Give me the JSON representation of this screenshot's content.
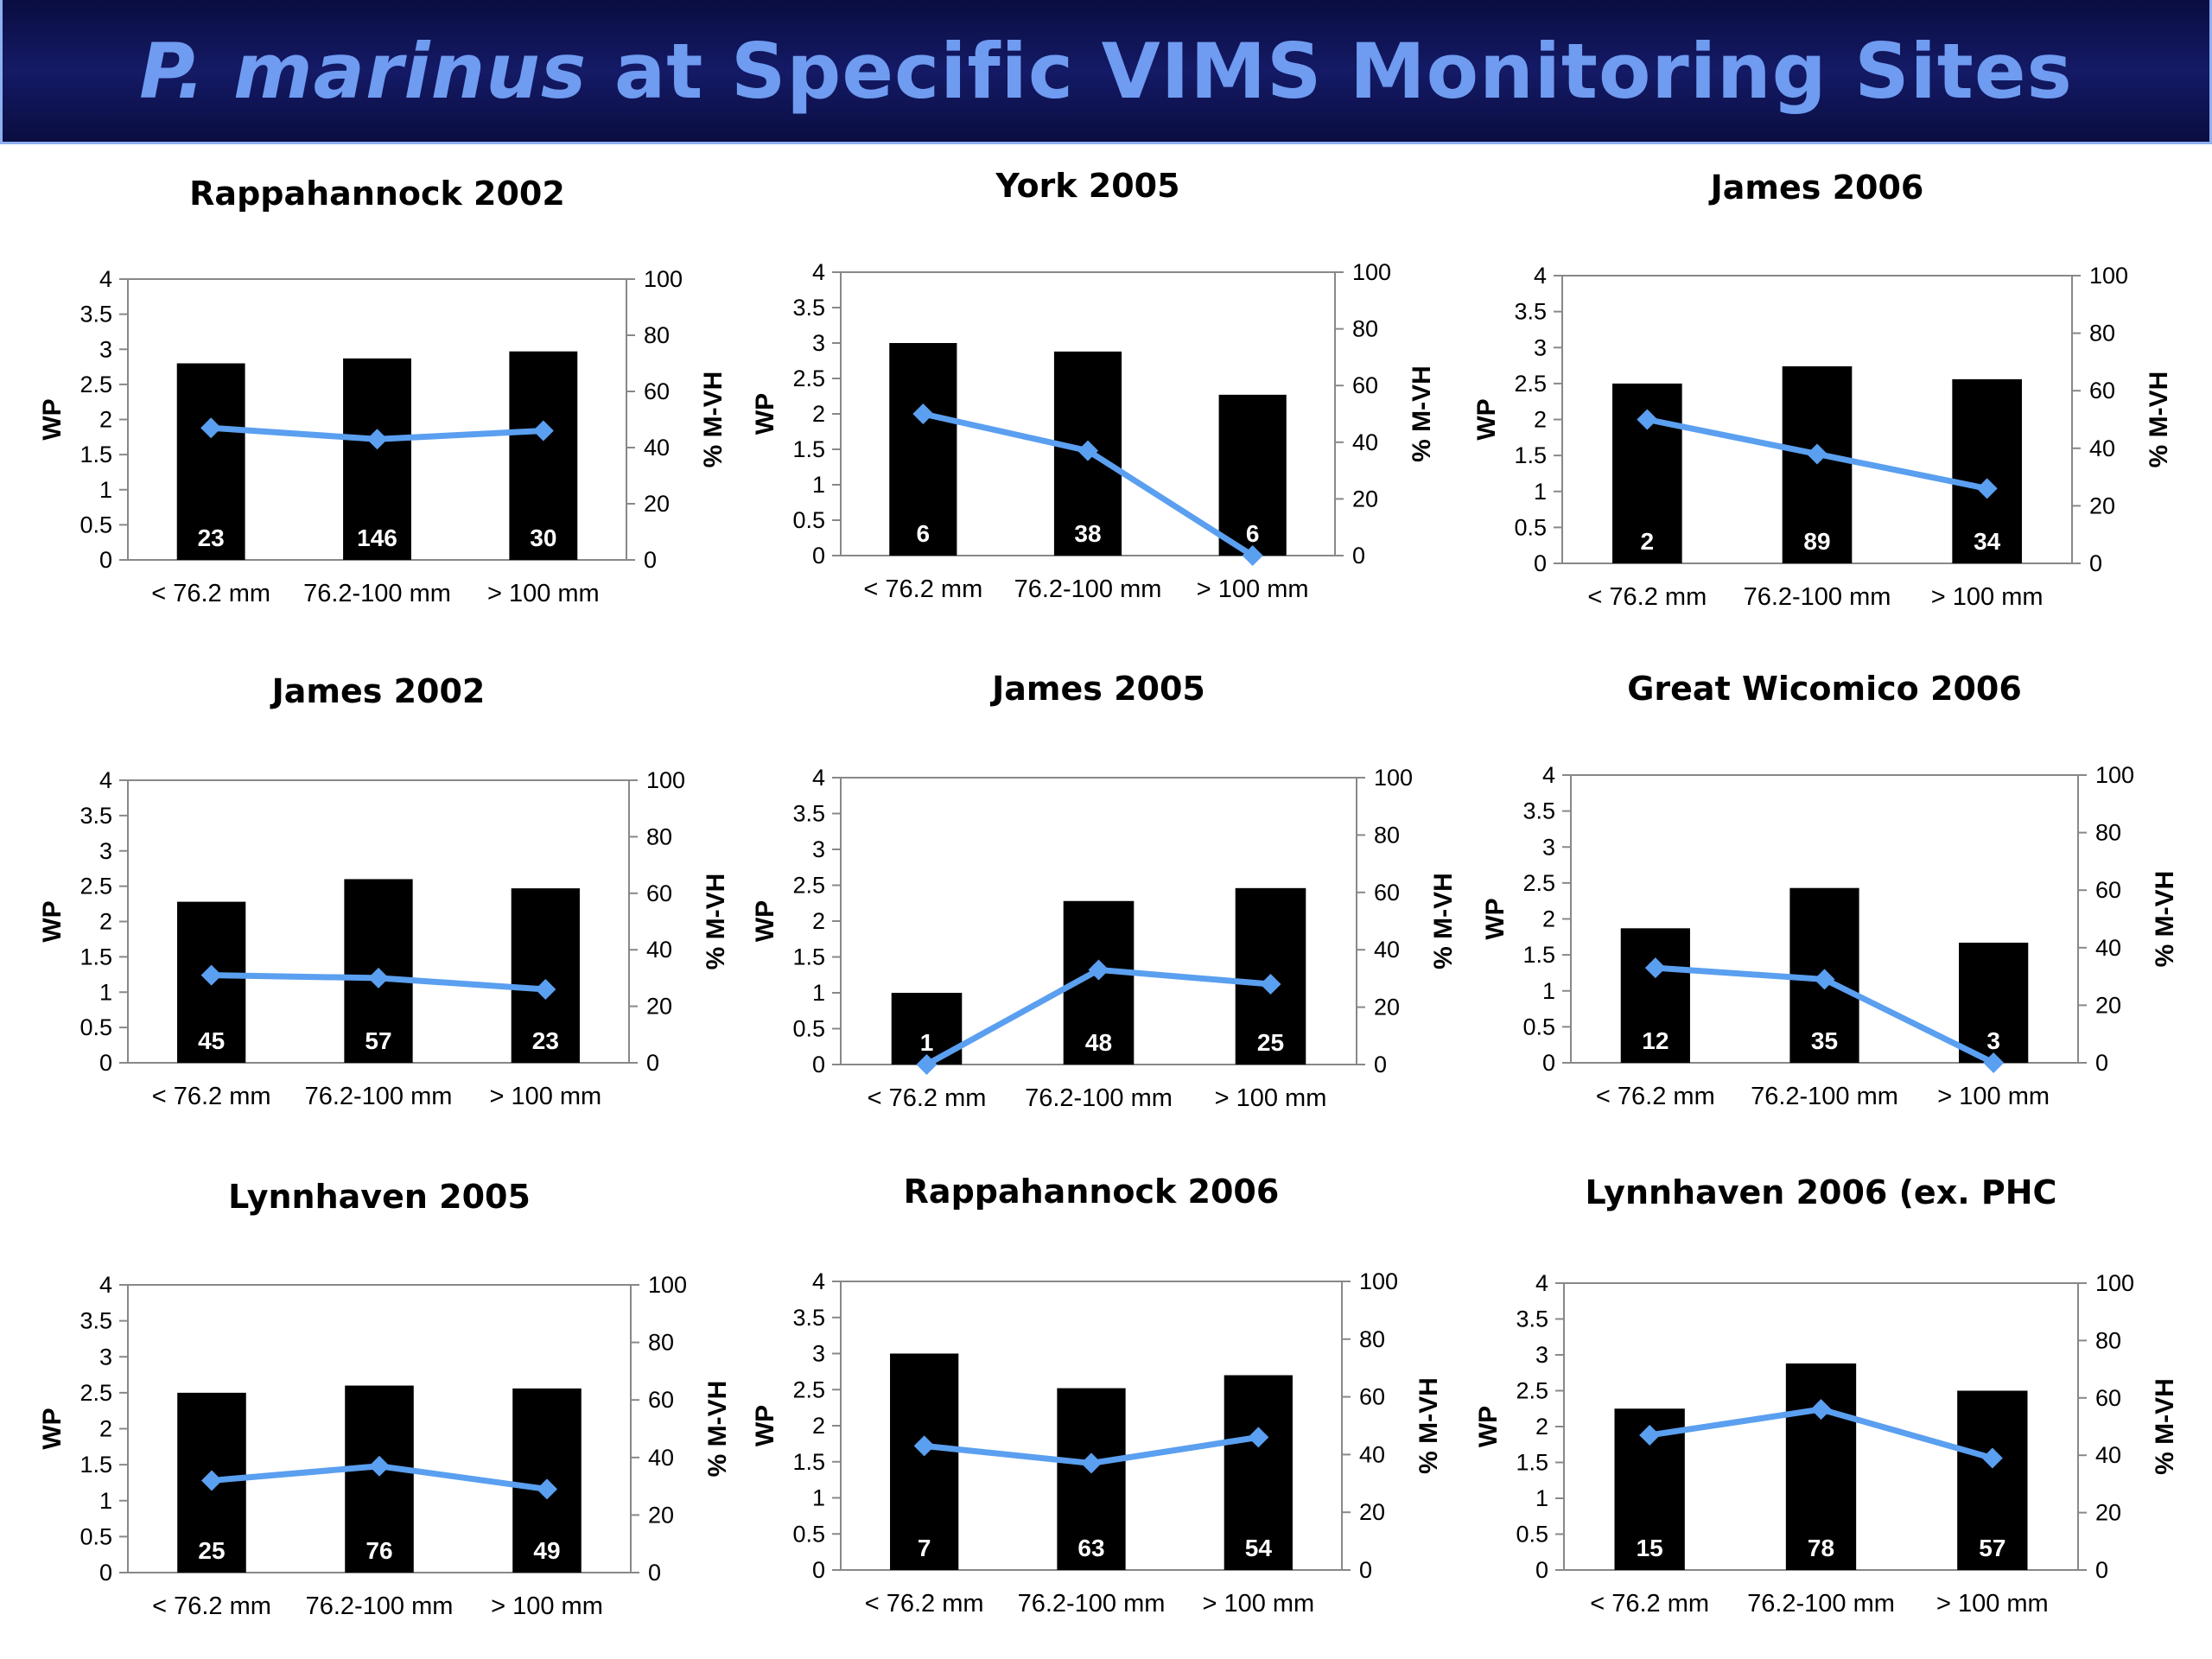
{
  "header": {
    "title_italic": "P. marinus",
    "title_rest": " at Specific VIMS Monitoring Sites"
  },
  "chart_data": [
    {
      "type": "bar",
      "title": "Rappahannock 2002",
      "categories": [
        "< 76.2 mm",
        "76.2-100 mm",
        "> 100 mm"
      ],
      "values": [
        2.8,
        2.87,
        2.97
      ],
      "bar_labels": [
        "23",
        "146",
        "30"
      ],
      "line": {
        "values": [
          47,
          43,
          46
        ],
        "color": "#5a9ff0"
      },
      "ylabel": "WP",
      "y2label": "% M-VH",
      "ylim": [
        0,
        4
      ],
      "yticks": [
        "0",
        "0.5",
        "1",
        "1.5",
        "2",
        "2.5",
        "3",
        "3.5",
        "4"
      ],
      "y2lim": [
        0,
        100
      ],
      "y2ticks": [
        "0",
        "20",
        "40",
        "60",
        "80",
        "100"
      ],
      "bar_color": "#000000"
    },
    {
      "type": "bar",
      "title": "York 2005",
      "categories": [
        "< 76.2 mm",
        "76.2-100 mm",
        "> 100 mm"
      ],
      "values": [
        3.0,
        2.88,
        2.27
      ],
      "bar_labels": [
        "6",
        "38",
        "6"
      ],
      "line": {
        "values": [
          50,
          37,
          0
        ],
        "color": "#5a9ff0"
      },
      "ylabel": "WP",
      "y2label": "% M-VH",
      "ylim": [
        0,
        4
      ],
      "yticks": [
        "0",
        "0.5",
        "1",
        "1.5",
        "2",
        "2.5",
        "3",
        "3.5",
        "4"
      ],
      "y2lim": [
        0,
        100
      ],
      "y2ticks": [
        "0",
        "20",
        "40",
        "60",
        "80",
        "100"
      ],
      "bar_color": "#000000"
    },
    {
      "type": "bar",
      "title": "James 2006",
      "categories": [
        "< 76.2 mm",
        "76.2-100 mm",
        "> 100 mm"
      ],
      "values": [
        2.5,
        2.74,
        2.56
      ],
      "bar_labels": [
        "2",
        "89",
        "34"
      ],
      "line": {
        "values": [
          50,
          38,
          26
        ],
        "color": "#5a9ff0"
      },
      "ylabel": "WP",
      "y2label": "% M-VH",
      "ylim": [
        0,
        4
      ],
      "yticks": [
        "0",
        "0.5",
        "1",
        "1.5",
        "2",
        "2.5",
        "3",
        "3.5",
        "4"
      ],
      "y2lim": [
        0,
        100
      ],
      "y2ticks": [
        "0",
        "20",
        "40",
        "60",
        "80",
        "100"
      ],
      "bar_color": "#000000"
    },
    {
      "type": "bar",
      "title": "James 2002",
      "categories": [
        "< 76.2 mm",
        "76.2-100 mm",
        "> 100 mm"
      ],
      "values": [
        2.28,
        2.6,
        2.47
      ],
      "bar_labels": [
        "45",
        "57",
        "23"
      ],
      "line": {
        "values": [
          31,
          30,
          26
        ],
        "color": "#5a9ff0"
      },
      "ylabel": "WP",
      "y2label": "% M-VH",
      "ylim": [
        0,
        4
      ],
      "yticks": [
        "0",
        "0.5",
        "1",
        "1.5",
        "2",
        "2.5",
        "3",
        "3.5",
        "4"
      ],
      "y2lim": [
        0,
        100
      ],
      "y2ticks": [
        "0",
        "20",
        "40",
        "60",
        "80",
        "100"
      ],
      "bar_color": "#000000"
    },
    {
      "type": "bar",
      "title": "James 2005",
      "categories": [
        "< 76.2 mm",
        "76.2-100 mm",
        "> 100 mm"
      ],
      "values": [
        1.0,
        2.28,
        2.46
      ],
      "bar_labels": [
        "1",
        "48",
        "25"
      ],
      "line": {
        "values": [
          0,
          33,
          28
        ],
        "color": "#5a9ff0"
      },
      "ylabel": "WP",
      "y2label": "% M-VH",
      "ylim": [
        0,
        4
      ],
      "yticks": [
        "0",
        "0.5",
        "1",
        "1.5",
        "2",
        "2.5",
        "3",
        "3.5",
        "4"
      ],
      "y2lim": [
        0,
        100
      ],
      "y2ticks": [
        "0",
        "20",
        "40",
        "60",
        "80",
        "100"
      ],
      "bar_color": "#000000"
    },
    {
      "type": "bar",
      "title": "Great Wicomico 2006",
      "categories": [
        "< 76.2 mm",
        "76.2-100 mm",
        "> 100 mm"
      ],
      "values": [
        1.87,
        2.43,
        1.67
      ],
      "bar_labels": [
        "12",
        "35",
        "3"
      ],
      "line": {
        "values": [
          33,
          29,
          0
        ],
        "color": "#5a9ff0"
      },
      "ylabel": "WP",
      "y2label": "% M-VH",
      "ylim": [
        0,
        4
      ],
      "yticks": [
        "0",
        "0.5",
        "1",
        "1.5",
        "2",
        "2.5",
        "3",
        "3.5",
        "4"
      ],
      "y2lim": [
        0,
        100
      ],
      "y2ticks": [
        "0",
        "20",
        "40",
        "60",
        "80",
        "100"
      ],
      "bar_color": "#000000"
    },
    {
      "type": "bar",
      "title": "Lynnhaven 2005",
      "categories": [
        "< 76.2 mm",
        "76.2-100 mm",
        "> 100 mm"
      ],
      "values": [
        2.5,
        2.6,
        2.56
      ],
      "bar_labels": [
        "25",
        "76",
        "49"
      ],
      "line": {
        "values": [
          32,
          37,
          29
        ],
        "color": "#5a9ff0"
      },
      "ylabel": "WP",
      "y2label": "% M-VH",
      "ylim": [
        0,
        4
      ],
      "yticks": [
        "0",
        "0.5",
        "1",
        "1.5",
        "2",
        "2.5",
        "3",
        "3.5",
        "4"
      ],
      "y2lim": [
        0,
        100
      ],
      "y2ticks": [
        "0",
        "20",
        "40",
        "60",
        "80",
        "100"
      ],
      "bar_color": "#000000"
    },
    {
      "type": "bar",
      "title": "Rappahannock 2006",
      "categories": [
        "< 76.2 mm",
        "76.2-100 mm",
        "> 100 mm"
      ],
      "values": [
        3.0,
        2.52,
        2.7
      ],
      "bar_labels": [
        "7",
        "63",
        "54"
      ],
      "line": {
        "values": [
          43,
          37,
          46
        ],
        "color": "#5a9ff0"
      },
      "ylabel": "WP",
      "y2label": "% M-VH",
      "ylim": [
        0,
        4
      ],
      "yticks": [
        "0",
        "0.5",
        "1",
        "1.5",
        "2",
        "2.5",
        "3",
        "3.5",
        "4"
      ],
      "y2lim": [
        0,
        100
      ],
      "y2ticks": [
        "0",
        "20",
        "40",
        "60",
        "80",
        "100"
      ],
      "bar_color": "#000000"
    },
    {
      "type": "bar",
      "title": "Lynnhaven 2006 (ex. PHC",
      "categories": [
        "< 76.2 mm",
        "76.2-100 mm",
        "> 100 mm"
      ],
      "values": [
        2.25,
        2.88,
        2.5
      ],
      "bar_labels": [
        "15",
        "78",
        "57"
      ],
      "line": {
        "values": [
          47,
          56,
          39
        ],
        "color": "#5a9ff0"
      },
      "ylabel": "WP",
      "y2label": "% M-VH",
      "ylim": [
        0,
        4
      ],
      "yticks": [
        "0",
        "0.5",
        "1",
        "1.5",
        "2",
        "2.5",
        "3",
        "3.5",
        "4"
      ],
      "y2lim": [
        0,
        100
      ],
      "y2ticks": [
        "0",
        "20",
        "40",
        "60",
        "80",
        "100"
      ],
      "bar_color": "#000000"
    }
  ]
}
